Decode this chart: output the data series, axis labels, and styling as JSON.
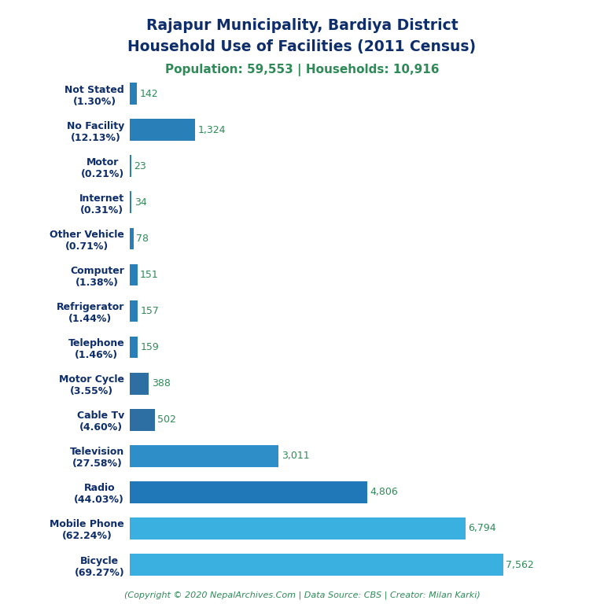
{
  "title_line1": "Rajapur Municipality, Bardiya District",
  "title_line2": "Household Use of Facilities (2011 Census)",
  "subtitle": "Population: 59,553 | Households: 10,916",
  "footer": "(Copyright © 2020 NepalArchives.Com | Data Source: CBS | Creator: Milan Karki)",
  "categories": [
    "Bicycle\n(69.27%)",
    "Mobile Phone\n(62.24%)",
    "Radio\n(44.03%)",
    "Television\n(27.58%)",
    "Cable Tv\n(4.60%)",
    "Motor Cycle\n(3.55%)",
    "Telephone\n(1.46%)",
    "Refrigerator\n(1.44%)",
    "Computer\n(1.38%)",
    "Other Vehicle\n(0.71%)",
    "Internet\n(0.31%)",
    "Motor\n(0.21%)",
    "No Facility\n(12.13%)",
    "Not Stated\n(1.30%)"
  ],
  "values": [
    7562,
    6794,
    4806,
    3011,
    502,
    388,
    159,
    157,
    151,
    78,
    34,
    23,
    1324,
    142
  ],
  "bar_colors": [
    "#3ab0e0",
    "#3ab0e0",
    "#2178b8",
    "#2e8fc8",
    "#2e6fa3",
    "#2e6fa3",
    "#2980b9",
    "#2980b9",
    "#2980b9",
    "#2980b9",
    "#2980b9",
    "#2980b9",
    "#2980b9",
    "#2980b9"
  ],
  "title_color": "#0d2d6b",
  "subtitle_color": "#2e8b57",
  "label_color": "#0d2d6b",
  "value_color": "#2e8b57",
  "footer_color": "#2e8b57",
  "bg_color": "#ffffff",
  "xlim": [
    0,
    8500
  ],
  "figsize": [
    7.68,
    7.68
  ],
  "dpi": 100
}
